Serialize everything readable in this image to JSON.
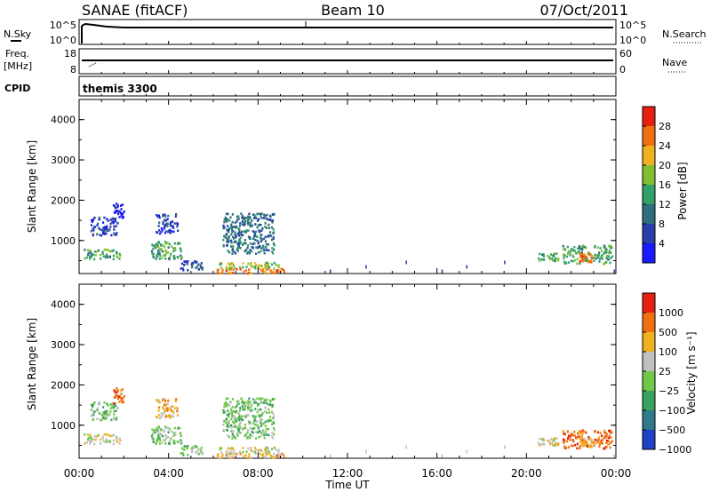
{
  "header": {
    "station": "SANAE (fitACF)",
    "beam": "Beam 10",
    "date": "07/Oct/2011"
  },
  "aux_panels": {
    "nsky_label": "N.Sky",
    "nsearch_label": "N.Search",
    "nsky_ticks": [
      "10^5",
      "10^0"
    ],
    "freq_label_1": "Freq.",
    "freq_label_2": "[MHz]",
    "freq_ticks": [
      "18",
      "8"
    ],
    "nave_label": "Nave",
    "nave_ticks": [
      "60",
      "0"
    ],
    "cpid_label": "CPID",
    "cpid_value": "themis 3300"
  },
  "chart_data": [
    {
      "type": "heatmap",
      "panel": "power",
      "ylabel": "Slant Range [km]",
      "xlabel": "Time UT",
      "ylim": [
        180,
        4500
      ],
      "yticks": [
        "1000",
        "2000",
        "3000",
        "4000"
      ],
      "xlim": [
        0,
        24
      ],
      "xticks": [
        "00:00",
        "04:00",
        "08:00",
        "12:00",
        "16:00",
        "20:00",
        "00:00"
      ],
      "colorbar_label": "Power [dB]",
      "colorbar_ticks": [
        "4",
        "8",
        "12",
        "16",
        "20",
        "24",
        "28"
      ],
      "colorbar_colors": [
        "#1a1aff",
        "#2c3eaa",
        "#2f6e7c",
        "#33a06a",
        "#80c030",
        "#f0b020",
        "#f07010",
        "#e82010"
      ],
      "regions": [
        {
          "t0": 0.2,
          "t1": 1.8,
          "r0": 560,
          "r1": 800,
          "level": 3
        },
        {
          "t0": 0.5,
          "t1": 1.7,
          "r0": 1150,
          "r1": 1600,
          "level": 1
        },
        {
          "t0": 1.5,
          "t1": 2.0,
          "r0": 1550,
          "r1": 1950,
          "level": 0
        },
        {
          "t0": 3.2,
          "t1": 4.6,
          "r0": 560,
          "r1": 1000,
          "level": 3
        },
        {
          "t0": 3.4,
          "t1": 4.4,
          "r0": 1200,
          "r1": 1680,
          "level": 1
        },
        {
          "t0": 4.5,
          "t1": 5.5,
          "r0": 280,
          "r1": 520,
          "level": 1
        },
        {
          "t0": 6.4,
          "t1": 8.7,
          "r0": 700,
          "r1": 1700,
          "level": 2
        },
        {
          "t0": 6.0,
          "t1": 9.2,
          "r0": 200,
          "r1": 320,
          "level": 6
        },
        {
          "t0": 6.2,
          "t1": 8.9,
          "r0": 320,
          "r1": 480,
          "level": 4
        },
        {
          "t0": 20.5,
          "t1": 21.4,
          "r0": 520,
          "r1": 700,
          "level": 3
        },
        {
          "t0": 21.6,
          "t1": 23.8,
          "r0": 450,
          "r1": 900,
          "level": 3
        },
        {
          "t0": 22.3,
          "t1": 22.9,
          "r0": 480,
          "r1": 700,
          "level": 6
        }
      ]
    },
    {
      "type": "heatmap",
      "panel": "velocity",
      "ylabel": "Slant Range [km]",
      "xlabel": "Time UT",
      "ylim": [
        180,
        4500
      ],
      "yticks": [
        "1000",
        "2000",
        "3000",
        "4000"
      ],
      "xlim": [
        0,
        24
      ],
      "xticks": [
        "00:00",
        "04:00",
        "08:00",
        "12:00",
        "16:00",
        "20:00",
        "00:00"
      ],
      "colorbar_label": "Velocity [m s⁻¹]",
      "colorbar_ticks": [
        "1000",
        "500",
        "100",
        "25",
        "−25",
        "−100",
        "−500",
        "−1000"
      ],
      "colorbar_colors": [
        "#2040c8",
        "#2e7a8a",
        "#3aa060",
        "#70c848",
        "#c0c0c0",
        "#f0b020",
        "#f07010",
        "#e82010"
      ],
      "regions": [
        {
          "t0": 0.2,
          "t1": 1.8,
          "r0": 560,
          "r1": 800,
          "level": 4
        },
        {
          "t0": 0.5,
          "t1": 1.7,
          "r0": 1150,
          "r1": 1600,
          "level": 3
        },
        {
          "t0": 1.5,
          "t1": 2.0,
          "r0": 1550,
          "r1": 1950,
          "level": 6
        },
        {
          "t0": 3.2,
          "t1": 4.6,
          "r0": 560,
          "r1": 1000,
          "level": 3
        },
        {
          "t0": 3.4,
          "t1": 4.4,
          "r0": 1200,
          "r1": 1680,
          "level": 5
        },
        {
          "t0": 4.5,
          "t1": 5.5,
          "r0": 280,
          "r1": 520,
          "level": 3
        },
        {
          "t0": 6.4,
          "t1": 8.7,
          "r0": 700,
          "r1": 1700,
          "level": 3
        },
        {
          "t0": 6.0,
          "t1": 9.2,
          "r0": 200,
          "r1": 320,
          "level": 5
        },
        {
          "t0": 6.2,
          "t1": 8.9,
          "r0": 320,
          "r1": 480,
          "level": 4
        },
        {
          "t0": 20.5,
          "t1": 21.4,
          "r0": 520,
          "r1": 700,
          "level": 4
        },
        {
          "t0": 21.6,
          "t1": 23.8,
          "r0": 450,
          "r1": 900,
          "level": 6
        },
        {
          "t0": 22.3,
          "t1": 22.9,
          "r0": 480,
          "r1": 700,
          "level": 5
        }
      ]
    }
  ]
}
